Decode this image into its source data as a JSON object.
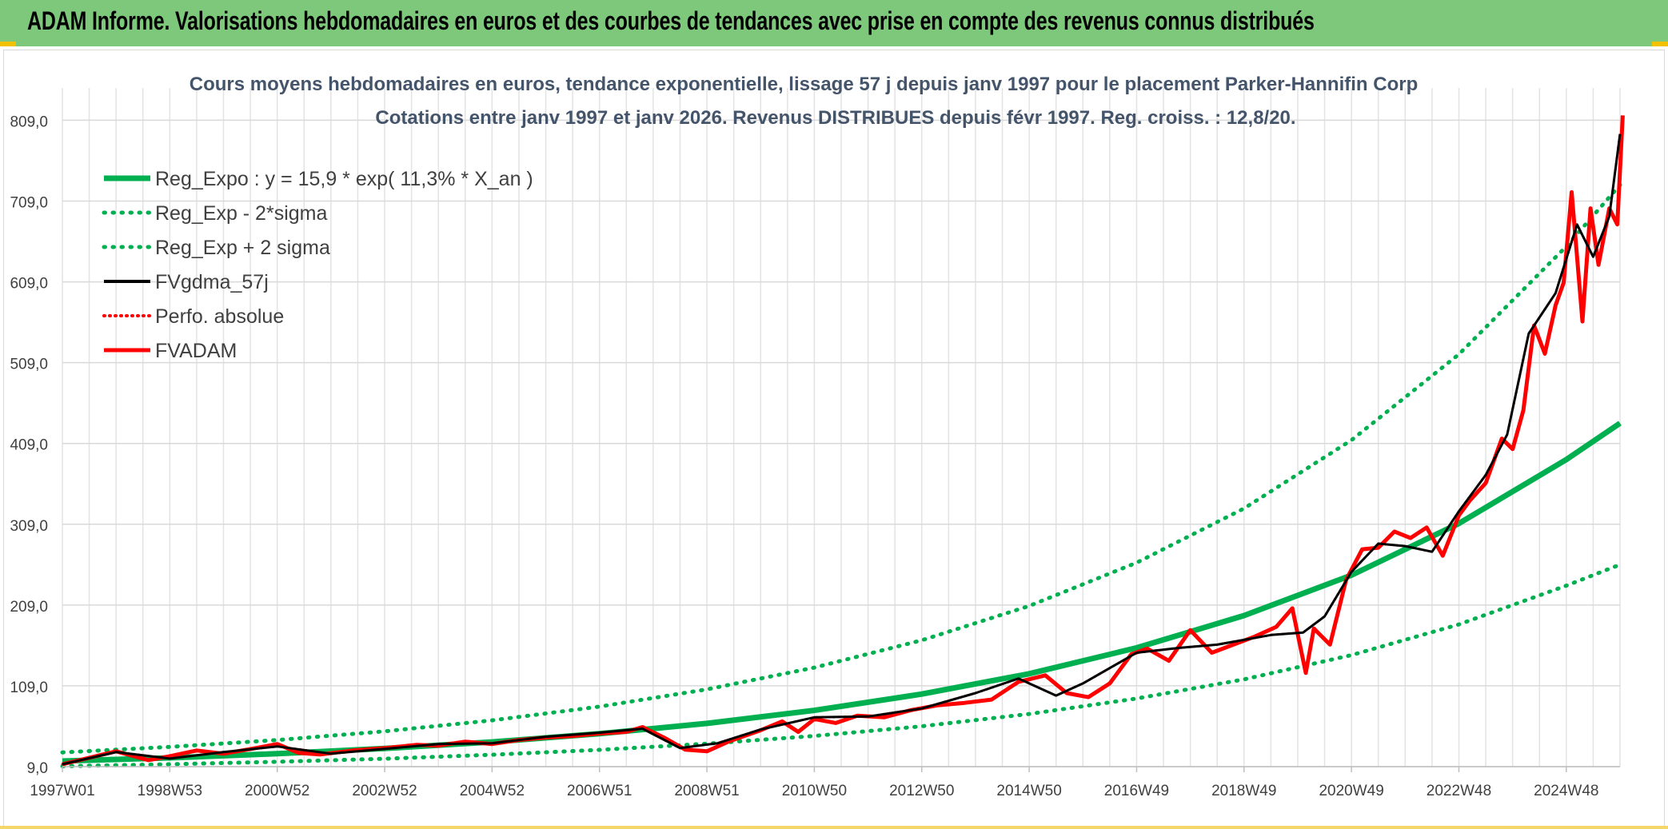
{
  "banner": {
    "title": "ADAM Informe. Valorisations hebdomadaires en euros et des courbes de tendances avec prise en compte des revenus connus distribués",
    "bg_color": "#7dc87a"
  },
  "chart_data": {
    "type": "line",
    "title": "Cours moyens hebdomadaires en euros, tendance exponentielle, lissage 57 j depuis janv 1997 pour le placement Parker-Hannifin Corp",
    "subtitle": "Cotations entre janv 1997 et janv 2026. Revenus DISTRIBUES depuis févr 1997. Reg. croiss. : 12,8/20.",
    "xlabel": "",
    "ylabel": "",
    "xlim": [
      1997.0,
      2026.0
    ],
    "ylim": [
      9.0,
      849.0
    ],
    "y_ticks": [
      9.0,
      109.0,
      209.0,
      309.0,
      409.0,
      509.0,
      609.0,
      709.0,
      809.0
    ],
    "y_tick_labels": [
      "9,0",
      "109,0",
      "209,0",
      "309,0",
      "409,0",
      "509,0",
      "609,0",
      "709,0",
      "809,0"
    ],
    "x_tick_labels": [
      "1997W01",
      "1998W53",
      "2000W52",
      "2002W52",
      "2004W52",
      "2006W51",
      "2008W51",
      "2010W50",
      "2012W50",
      "2014W50",
      "2016W49",
      "2018W49",
      "2020W49",
      "2022W48",
      "2024W48"
    ],
    "x_ticks": [
      1997.0,
      1999.0,
      2001.0,
      2003.0,
      2005.0,
      2007.0,
      2009.0,
      2011.0,
      2013.0,
      2015.0,
      2017.0,
      2019.0,
      2021.0,
      2023.0,
      2025.0
    ],
    "grid": true,
    "legend_position": "top-left",
    "series": [
      {
        "name": "Reg_Expo : y = 15,9 * exp( 11,3% *  X_an )",
        "color": "#00b050",
        "style": "solid",
        "x": [
          1997,
          1999,
          2001,
          2003,
          2005,
          2007,
          2009,
          2011,
          2013,
          2015,
          2017,
          2019,
          2021,
          2023,
          2025,
          2026
        ],
        "values": [
          15.9,
          19.9,
          25.0,
          31.5,
          39.6,
          49.8,
          62.5,
          78.7,
          98.8,
          124.0,
          156.0,
          196.0,
          246.0,
          310.0,
          389.0,
          434.0
        ]
      },
      {
        "name": "Reg_Exp - 2*sigma",
        "color": "#00b050",
        "style": "dotted",
        "x": [
          1997,
          1999,
          2001,
          2003,
          2005,
          2007,
          2009,
          2011,
          2013,
          2015,
          2017,
          2019,
          2021,
          2023,
          2025,
          2026
        ],
        "values": [
          9.5,
          12.0,
          15.0,
          18.8,
          23.7,
          29.8,
          37.4,
          47.0,
          59.0,
          74.2,
          93.3,
          117.0,
          147.0,
          185.0,
          233.0,
          259.0
        ]
      },
      {
        "name": "Reg_Exp + 2 sigma",
        "color": "#00b050",
        "style": "dotted",
        "x": [
          1997,
          1999,
          2001,
          2003,
          2005,
          2007,
          2009,
          2011,
          2013,
          2015,
          2017,
          2019,
          2021,
          2023,
          2025,
          2026
        ],
        "values": [
          26.6,
          33.4,
          41.9,
          52.7,
          66.3,
          83.3,
          104.7,
          131.6,
          165.4,
          207.9,
          261.4,
          328.6,
          413.1,
          519.3,
          652.8,
          729.0
        ]
      },
      {
        "name": "FVgdma_57j",
        "color": "#000000",
        "style": "solid",
        "x": [
          1997,
          1998,
          1999,
          2000,
          2001,
          2002,
          2003,
          2004,
          2005,
          2006,
          2007,
          2007.8,
          2008.5,
          2009.2,
          2010,
          2011,
          2012,
          2013,
          2014,
          2014.8,
          2015.5,
          2016,
          2017,
          2017.8,
          2018.5,
          2019.5,
          2020.1,
          2020.5,
          2021,
          2021.5,
          2022,
          2022.5,
          2023,
          2023.5,
          2023.9,
          2024.3,
          2024.8,
          2025.2,
          2025.5,
          2025.8,
          2026
        ],
        "values": [
          12,
          27,
          19,
          27,
          34,
          25,
          31,
          37,
          38,
          46,
          51,
          56,
          32,
          38,
          55,
          70,
          71,
          81,
          100,
          118,
          97,
          112,
          150,
          156,
          160,
          172,
          175,
          195,
          250,
          285,
          282,
          275,
          325,
          370,
          420,
          545,
          595,
          680,
          640,
          690,
          792
        ]
      },
      {
        "name": "Perfo. absolue",
        "color": "#ff0000",
        "style": "dotted",
        "x": [
          1997,
          1998,
          1999,
          2000,
          2001,
          2002,
          2003,
          2004,
          2005,
          2006,
          2007,
          2007.8,
          2008.5,
          2009.2,
          2010,
          2011,
          2012,
          2013,
          2014,
          2014.8,
          2015.5,
          2016,
          2017,
          2017.8,
          2018.5,
          2019.5,
          2020.1,
          2020.5,
          2021,
          2021.5,
          2022,
          2022.5,
          2023,
          2023.5,
          2023.9,
          2024.3,
          2024.8,
          2025.2,
          2025.5,
          2025.8,
          2026
        ],
        "values": [
          12,
          27,
          19,
          27,
          34,
          25,
          31,
          37,
          38,
          46,
          51,
          56,
          32,
          38,
          55,
          70,
          71,
          81,
          100,
          118,
          97,
          112,
          150,
          156,
          160,
          172,
          175,
          195,
          250,
          285,
          282,
          275,
          325,
          370,
          420,
          545,
          595,
          680,
          640,
          690,
          792
        ]
      },
      {
        "name": "FVADAM",
        "color": "#ff0000",
        "style": "solid",
        "x": [
          1997,
          1997.5,
          1998,
          1998.6,
          1999,
          1999.5,
          2000,
          2000.6,
          2001,
          2001.4,
          2001.8,
          2002.4,
          2003,
          2003.6,
          2004,
          2004.5,
          2005,
          2005.5,
          2006,
          2006.5,
          2007,
          2007.5,
          2007.8,
          2008.2,
          2008.6,
          2009,
          2009.4,
          2010,
          2010.4,
          2010.7,
          2011,
          2011.4,
          2011.8,
          2012.3,
          2012.8,
          2013.3,
          2013.8,
          2014.3,
          2014.8,
          2015.3,
          2015.7,
          2016.1,
          2016.5,
          2016.9,
          2017.2,
          2017.6,
          2018,
          2018.4,
          2018.8,
          2019.2,
          2019.6,
          2019.9,
          2020.15,
          2020.3,
          2020.6,
          2020.9,
          2021.2,
          2021.5,
          2021.8,
          2022.1,
          2022.4,
          2022.7,
          2023,
          2023.2,
          2023.5,
          2023.8,
          2024.0,
          2024.2,
          2024.4,
          2024.6,
          2024.8,
          2024.95,
          2025.1,
          2025.3,
          2025.45,
          2025.6,
          2025.8,
          2025.95,
          2026.05
        ],
        "values": [
          12,
          20,
          28,
          17,
          22,
          29,
          25,
          32,
          37,
          26,
          24,
          29,
          32,
          36,
          35,
          40,
          37,
          42,
          45,
          47,
          50,
          52,
          58,
          45,
          30,
          28,
          40,
          54,
          65,
          52,
          68,
          63,
          72,
          70,
          79,
          85,
          88,
          92,
          114,
          122,
          100,
          95,
          112,
          148,
          155,
          140,
          178,
          150,
          160,
          170,
          182,
          205,
          125,
          180,
          160,
          240,
          278,
          280,
          300,
          292,
          305,
          270,
          320,
          338,
          360,
          415,
          402,
          450,
          555,
          520,
          580,
          608,
          720,
          560,
          700,
          630,
          700,
          680,
          815
        ]
      }
    ]
  }
}
